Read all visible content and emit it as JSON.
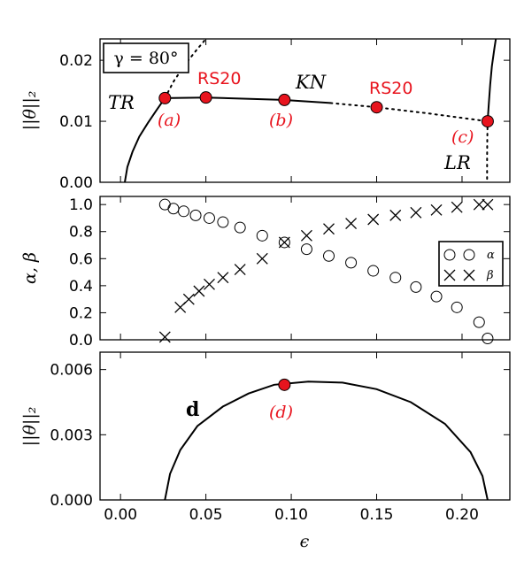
{
  "chart_data": [
    {
      "type": "line",
      "ylabel": "||θ||₂",
      "ylim": [
        0,
        0.0235
      ],
      "xlim": [
        -0.012,
        0.228
      ],
      "yticks": [
        "0.00",
        "0.01",
        "0.02"
      ],
      "ytick_values": [
        0,
        0.01,
        0.02
      ],
      "box_label": "γ = 80°",
      "annotations": {
        "tr": "TR",
        "kn": "KN",
        "lr": "LR",
        "rs20_left": "RS20",
        "rs20_right": "RS20",
        "a": "(a)",
        "b": "(b)",
        "c": "(c)"
      },
      "series": [
        {
          "style": "solid",
          "points": [
            [
              0.0025,
              0
            ],
            [
              0.004,
              0.0025
            ],
            [
              0.007,
              0.005
            ],
            [
              0.011,
              0.0075
            ],
            [
              0.016,
              0.0097
            ],
            [
              0.021,
              0.0118
            ],
            [
              0.026,
              0.0138
            ],
            [
              0.05,
              0.0139
            ],
            [
              0.095,
              0.0135
            ],
            [
              0.123,
              0.013
            ]
          ]
        },
        {
          "style": "dotted",
          "points": [
            [
              0.026,
              0.0138
            ],
            [
              0.031,
              0.0165
            ],
            [
              0.037,
              0.019
            ],
            [
              0.044,
              0.0215
            ],
            [
              0.05,
              0.0235
            ]
          ]
        },
        {
          "style": "dotted",
          "points": [
            [
              0.123,
              0.013
            ],
            [
              0.15,
              0.0123
            ],
            [
              0.18,
              0.0113
            ],
            [
              0.215,
              0.01
            ]
          ]
        },
        {
          "style": "solid",
          "points": [
            [
              0.215,
              0.01
            ],
            [
              0.2157,
              0.013
            ],
            [
              0.2165,
              0.016
            ],
            [
              0.2175,
              0.019
            ],
            [
              0.219,
              0.022
            ],
            [
              0.2198,
              0.0235
            ]
          ]
        },
        {
          "style": "dotted",
          "points": [
            [
              0.215,
              0.01
            ],
            [
              0.2148,
              0.007
            ],
            [
              0.2147,
              0.004
            ],
            [
              0.2147,
              0
            ]
          ]
        }
      ],
      "markers": [
        [
          0.026,
          0.0138
        ],
        [
          0.05,
          0.0139
        ],
        [
          0.096,
          0.0135
        ],
        [
          0.15,
          0.0123
        ],
        [
          0.215,
          0.01
        ]
      ]
    },
    {
      "type": "scatter",
      "ylabel": "α, β",
      "ylim": [
        0,
        1.06
      ],
      "xlim": [
        -0.012,
        0.228
      ],
      "yticks": [
        "0.0",
        "0.2",
        "0.4",
        "0.6",
        "0.8",
        "1.0"
      ],
      "ytick_values": [
        0,
        0.2,
        0.4,
        0.6,
        0.8,
        1.0
      ],
      "legend": [
        {
          "name": "α",
          "marker": "circle"
        },
        {
          "name": "β",
          "marker": "cross"
        }
      ],
      "series": [
        {
          "name": "α",
          "marker": "circle",
          "x": [
            0.026,
            0.031,
            0.037,
            0.044,
            0.052,
            0.06,
            0.07,
            0.083,
            0.096,
            0.109,
            0.122,
            0.135,
            0.148,
            0.161,
            0.173,
            0.185,
            0.197,
            0.21,
            0.215
          ],
          "y": [
            1.0,
            0.97,
            0.95,
            0.92,
            0.9,
            0.87,
            0.83,
            0.77,
            0.72,
            0.67,
            0.62,
            0.57,
            0.51,
            0.46,
            0.39,
            0.32,
            0.24,
            0.13,
            0.01
          ]
        },
        {
          "name": "β",
          "marker": "cross",
          "x": [
            0.026,
            0.035,
            0.04,
            0.046,
            0.052,
            0.06,
            0.07,
            0.083,
            0.096,
            0.109,
            0.122,
            0.135,
            0.148,
            0.161,
            0.173,
            0.185,
            0.197,
            0.21,
            0.215
          ],
          "y": [
            0.02,
            0.24,
            0.3,
            0.36,
            0.41,
            0.46,
            0.52,
            0.6,
            0.72,
            0.77,
            0.82,
            0.86,
            0.89,
            0.92,
            0.94,
            0.96,
            0.98,
            1.0,
            1.0
          ]
        }
      ]
    },
    {
      "type": "line",
      "xlabel": "ϵ",
      "ylabel": "||θ||₂",
      "ylim": [
        0,
        0.0068
      ],
      "xlim": [
        -0.012,
        0.228
      ],
      "yticks": [
        "0.000",
        "0.003",
        "0.006"
      ],
      "ytick_values": [
        0,
        0.003,
        0.006
      ],
      "xticks": [
        "0.00",
        "0.05",
        "0.10",
        "0.15",
        "0.20"
      ],
      "xtick_values": [
        0,
        0.05,
        0.1,
        0.15,
        0.2
      ],
      "annotations": {
        "d_bold": "d",
        "d": "(d)"
      },
      "series": [
        {
          "style": "solid",
          "points": [
            [
              0.026,
              0
            ],
            [
              0.029,
              0.0012
            ],
            [
              0.035,
              0.0023
            ],
            [
              0.045,
              0.0034
            ],
            [
              0.06,
              0.0043
            ],
            [
              0.075,
              0.0049
            ],
            [
              0.09,
              0.0053
            ],
            [
              0.11,
              0.00545
            ],
            [
              0.13,
              0.0054
            ],
            [
              0.15,
              0.0051
            ],
            [
              0.17,
              0.0045
            ],
            [
              0.19,
              0.0035
            ],
            [
              0.205,
              0.0022
            ],
            [
              0.212,
              0.0011
            ],
            [
              0.215,
              0
            ]
          ]
        }
      ],
      "markers": [
        [
          0.096,
          0.0053
        ]
      ]
    }
  ]
}
